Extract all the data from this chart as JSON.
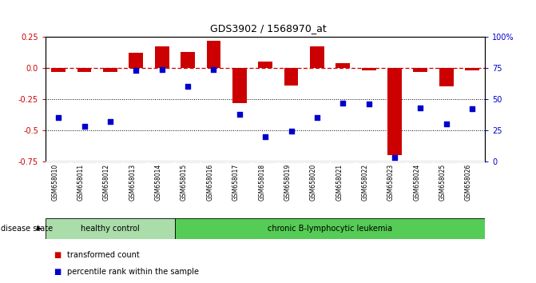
{
  "title": "GDS3902 / 1568970_at",
  "samples": [
    "GSM658010",
    "GSM658011",
    "GSM658012",
    "GSM658013",
    "GSM658014",
    "GSM658015",
    "GSM658016",
    "GSM658017",
    "GSM658018",
    "GSM658019",
    "GSM658020",
    "GSM658021",
    "GSM658022",
    "GSM658023",
    "GSM658024",
    "GSM658025",
    "GSM658026"
  ],
  "bar_values": [
    -0.03,
    -0.03,
    -0.03,
    0.12,
    0.17,
    0.13,
    0.22,
    -0.28,
    0.05,
    -0.14,
    0.17,
    0.04,
    -0.02,
    -0.7,
    -0.03,
    -0.15,
    -0.02
  ],
  "percentile_values": [
    35,
    28,
    32,
    73,
    74,
    60,
    74,
    38,
    20,
    24,
    35,
    47,
    46,
    3,
    43,
    30,
    42
  ],
  "healthy_count": 5,
  "bar_color": "#cc0000",
  "dot_color": "#0000cc",
  "ylim_left": [
    -0.75,
    0.25
  ],
  "ylim_right": [
    0,
    100
  ],
  "yticks_left": [
    0.25,
    0.0,
    -0.25,
    -0.5,
    -0.75
  ],
  "yticks_right": [
    100,
    75,
    50,
    25,
    0
  ],
  "hline_y": 0.0,
  "dotted_lines": [
    -0.25,
    -0.5
  ],
  "healthy_label": "healthy control",
  "leukemia_label": "chronic B-lymphocytic leukemia",
  "disease_state_label": "disease state",
  "legend_bar_label": "transformed count",
  "legend_dot_label": "percentile rank within the sample",
  "healthy_color": "#aaddaa",
  "leukemia_color": "#55cc55",
  "bg_color": "#ffffff",
  "plot_bg_color": "#ffffff",
  "sample_strip_color": "#c8c8c8"
}
